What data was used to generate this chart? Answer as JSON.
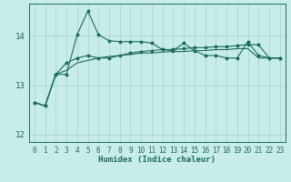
{
  "xlabel": "Humidex (Indice chaleur)",
  "bg_color": "#c8ece8",
  "grid_color": "#9fd4cc",
  "line_color": "#1a6b5a",
  "xlim": [
    -0.5,
    23.5
  ],
  "ylim": [
    11.85,
    14.65
  ],
  "yticks": [
    12,
    13,
    14
  ],
  "xticks": [
    0,
    1,
    2,
    3,
    4,
    5,
    6,
    7,
    8,
    9,
    10,
    11,
    12,
    13,
    14,
    15,
    16,
    17,
    18,
    19,
    20,
    21,
    22,
    23
  ],
  "line1_x": [
    0,
    1,
    2,
    3,
    4,
    5,
    6,
    7,
    8,
    9,
    10,
    11,
    12,
    13,
    14,
    15,
    16,
    17,
    18,
    19,
    20,
    21,
    22,
    23
  ],
  "line1_y": [
    12.65,
    12.58,
    13.22,
    13.22,
    14.02,
    14.5,
    14.02,
    13.9,
    13.88,
    13.88,
    13.88,
    13.85,
    13.72,
    13.7,
    13.85,
    13.7,
    13.6,
    13.6,
    13.55,
    13.55,
    13.88,
    13.6,
    13.55,
    13.55
  ],
  "line2_x": [
    0,
    1,
    2,
    3,
    4,
    5,
    6,
    7,
    8,
    9,
    10,
    11,
    12,
    13,
    14,
    15,
    16,
    17,
    18,
    19,
    20,
    21,
    22,
    23
  ],
  "line2_y": [
    12.65,
    12.58,
    13.22,
    13.45,
    13.55,
    13.6,
    13.55,
    13.55,
    13.6,
    13.65,
    13.68,
    13.7,
    13.72,
    13.72,
    13.74,
    13.76,
    13.76,
    13.78,
    13.78,
    13.8,
    13.82,
    13.82,
    13.55,
    13.55
  ],
  "line3_x": [
    0,
    1,
    2,
    3,
    4,
    5,
    6,
    7,
    8,
    9,
    10,
    11,
    12,
    13,
    14,
    15,
    16,
    17,
    18,
    19,
    20,
    21,
    22,
    23
  ],
  "line3_y": [
    12.65,
    12.58,
    13.22,
    13.3,
    13.45,
    13.5,
    13.55,
    13.58,
    13.6,
    13.62,
    13.65,
    13.65,
    13.67,
    13.68,
    13.68,
    13.7,
    13.7,
    13.72,
    13.72,
    13.74,
    13.74,
    13.55,
    13.55,
    13.55
  ],
  "tick_fontsize": 5.5,
  "label_fontsize": 6.5
}
